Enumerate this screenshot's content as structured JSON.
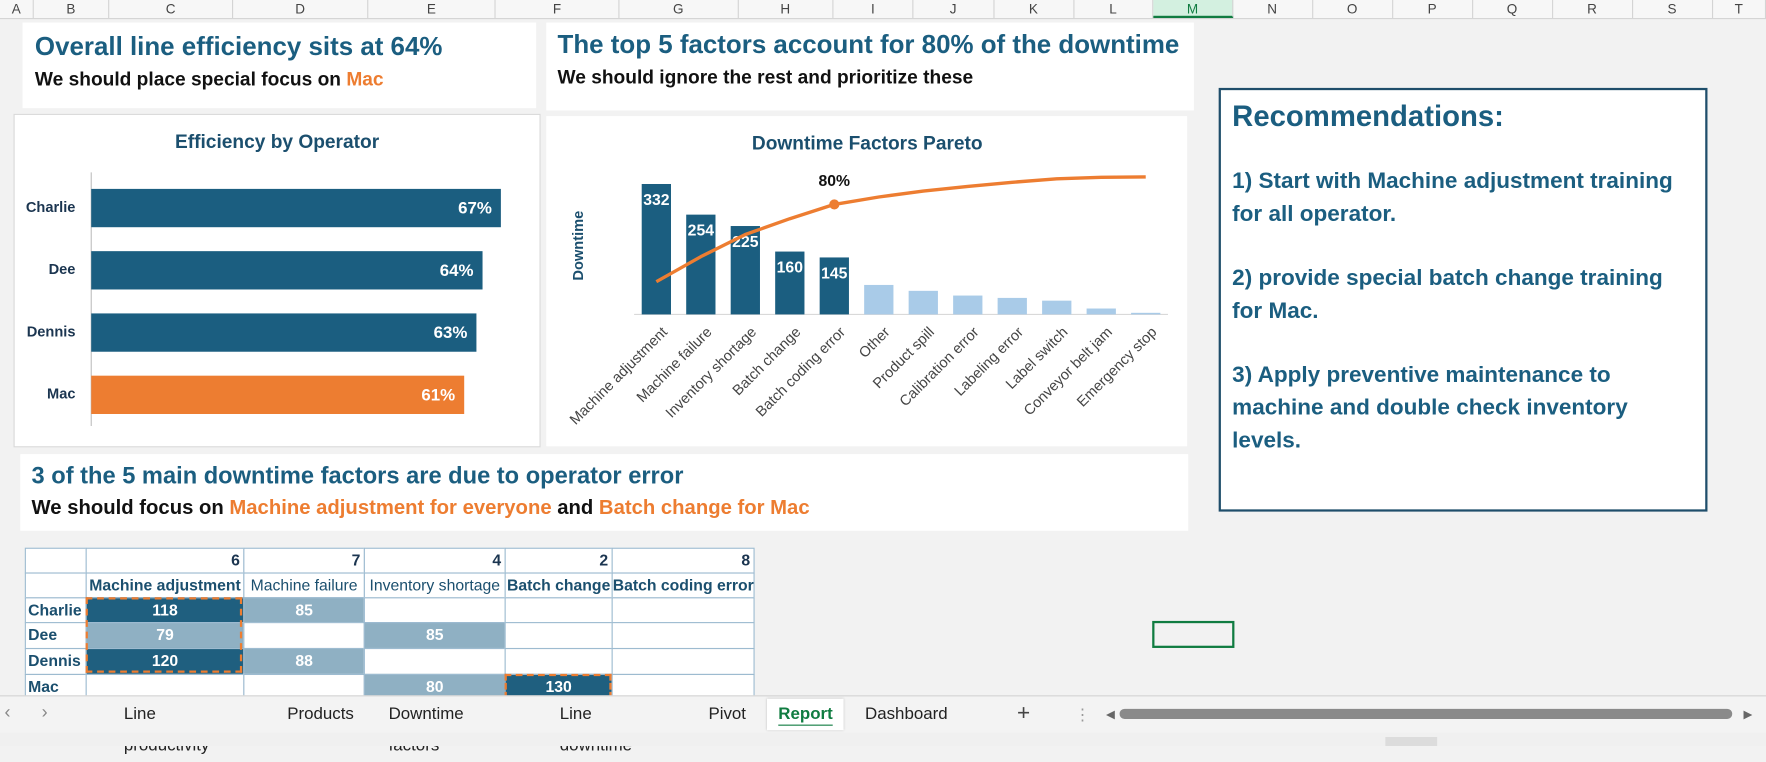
{
  "column_headers": [
    "A",
    "B",
    "C",
    "D",
    "E",
    "F",
    "G",
    "H",
    "I",
    "J",
    "K",
    "L",
    "M",
    "N",
    "O",
    "P",
    "Q",
    "R",
    "S",
    "T"
  ],
  "efficiency_box": {
    "title": "Overall line efficiency sits at 64%",
    "subtitle": "We should place special focus on ",
    "highlight": "Mac"
  },
  "pareto_box": {
    "title": "The top 5 factors account for 80% of the downtime",
    "subtitle": "We should ignore the rest and prioritize these"
  },
  "operator_box": {
    "title": "3 of the 5 main downtime factors are due to operator error",
    "subtitle_parts": [
      "We should focus on ",
      "Machine adjustment for everyone",
      " and ",
      "Batch change for Mac"
    ]
  },
  "recommendations": {
    "title": "Recommendations:",
    "items": [
      "1) Start with Machine adjustment training for all operator.",
      "2) provide special batch change training for Mac.",
      "3) Apply preventive maintenance to machine and double check inventory levels."
    ]
  },
  "chart_data": [
    {
      "type": "bar",
      "orientation": "horizontal",
      "title": "Efficiency by Operator",
      "categories": [
        "Charlie",
        "Dee",
        "Dennis",
        "Mac"
      ],
      "values": [
        67,
        64,
        63,
        61
      ],
      "value_labels": [
        "67%",
        "64%",
        "63%",
        "61%"
      ],
      "colors": [
        "#1b5e80",
        "#1b5e80",
        "#1b5e80",
        "#ed7d31"
      ],
      "xlim": [
        0,
        70
      ]
    },
    {
      "type": "pareto",
      "title": "Downtime Factors Pareto",
      "y_label": "Downtime",
      "categories": [
        "Machine adjustment",
        "Machine failure",
        "Inventory shortage",
        "Batch change",
        "Batch coding error",
        "Other",
        "Product spill",
        "Calibration error",
        "Labeling error",
        "Label switch",
        "Conveyor belt jam",
        "Emergency stop"
      ],
      "values": [
        332,
        254,
        225,
        160,
        145,
        75,
        60,
        48,
        42,
        35,
        15,
        4
      ],
      "value_labels": [
        "332",
        "254",
        "225",
        "160",
        "145",
        null,
        null,
        null,
        null,
        null,
        null,
        null
      ],
      "colors": [
        "#1b5e80",
        "#1b5e80",
        "#1b5e80",
        "#1b5e80",
        "#1b5e80",
        "#a9cbe8",
        "#a9cbe8",
        "#a9cbe8",
        "#a9cbe8",
        "#a9cbe8",
        "#a9cbe8",
        "#a9cbe8"
      ],
      "ylim": [
        0,
        350
      ],
      "line": {
        "values": [
          23.8,
          42.0,
          58.1,
          69.6,
          80.0,
          85.4,
          89.7,
          93.1,
          96.1,
          98.6,
          99.7,
          100
        ],
        "value_labels": [
          null,
          null,
          null,
          null,
          "80%",
          null,
          null,
          null,
          null,
          null,
          null,
          null
        ],
        "color": "#ed7d31",
        "axis": "y2"
      },
      "y2lim": [
        0,
        100
      ]
    }
  ],
  "table": {
    "counts": [
      "6",
      "7",
      "4",
      "2",
      "8"
    ],
    "columns": [
      "Machine adjustment",
      "Machine failure",
      "Inventory shortage",
      "Batch change",
      "Batch coding error"
    ],
    "header_bold": [
      true,
      false,
      false,
      true,
      true
    ],
    "rows": [
      {
        "name": "Charlie",
        "cells": [
          "118",
          "85",
          null,
          null,
          null
        ]
      },
      {
        "name": "Dee",
        "cells": [
          "79",
          null,
          "85",
          null,
          null
        ]
      },
      {
        "name": "Dennis",
        "cells": [
          "120",
          "88",
          null,
          null,
          null
        ]
      },
      {
        "name": "Mac",
        "cells": [
          null,
          null,
          "80",
          "130",
          null
        ]
      }
    ],
    "cell_colors": [
      [
        "#1f5f7f",
        "#8fb0c3",
        null,
        null,
        null
      ],
      [
        "#8fb0c3",
        null,
        "#8fb0c3",
        null,
        null
      ],
      [
        "#1f5f7f",
        "#8fb0c3",
        null,
        null,
        null
      ],
      [
        null,
        null,
        "#8fb0c3",
        "#1f5f7f",
        null
      ]
    ]
  },
  "sheet_tabs": [
    "Line productivity",
    "Products",
    "Downtime factors",
    "Line downtime",
    "Pivot",
    "Report",
    "Dashboard"
  ],
  "active_tab": 5
}
